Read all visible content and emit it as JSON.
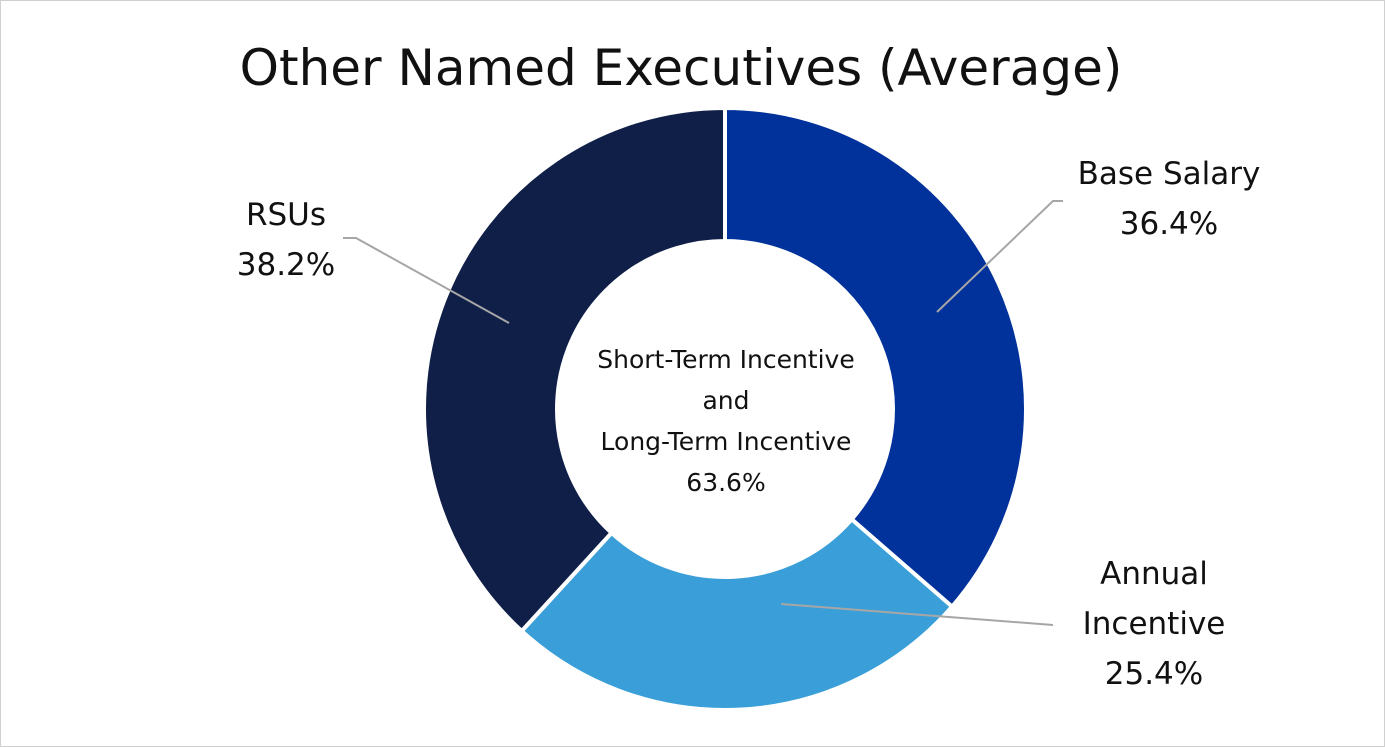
{
  "chart_data": {
    "type": "donut",
    "title": "Other Named Executives (Average)",
    "categories": [
      "Base Salary",
      "Annual Incentive",
      "RSUs"
    ],
    "values": [
      36.4,
      25.4,
      38.2
    ],
    "value_labels": [
      "36.4%",
      "25.4%",
      "38.2%"
    ],
    "colors": [
      "#01319a",
      "#3a9fd8",
      "#0f1f47"
    ],
    "center_label": [
      "Short-Term Incentive",
      "and",
      "Long-Term Incentive"
    ],
    "center_value": {
      "value": 63.6,
      "label": "63.6%"
    }
  }
}
